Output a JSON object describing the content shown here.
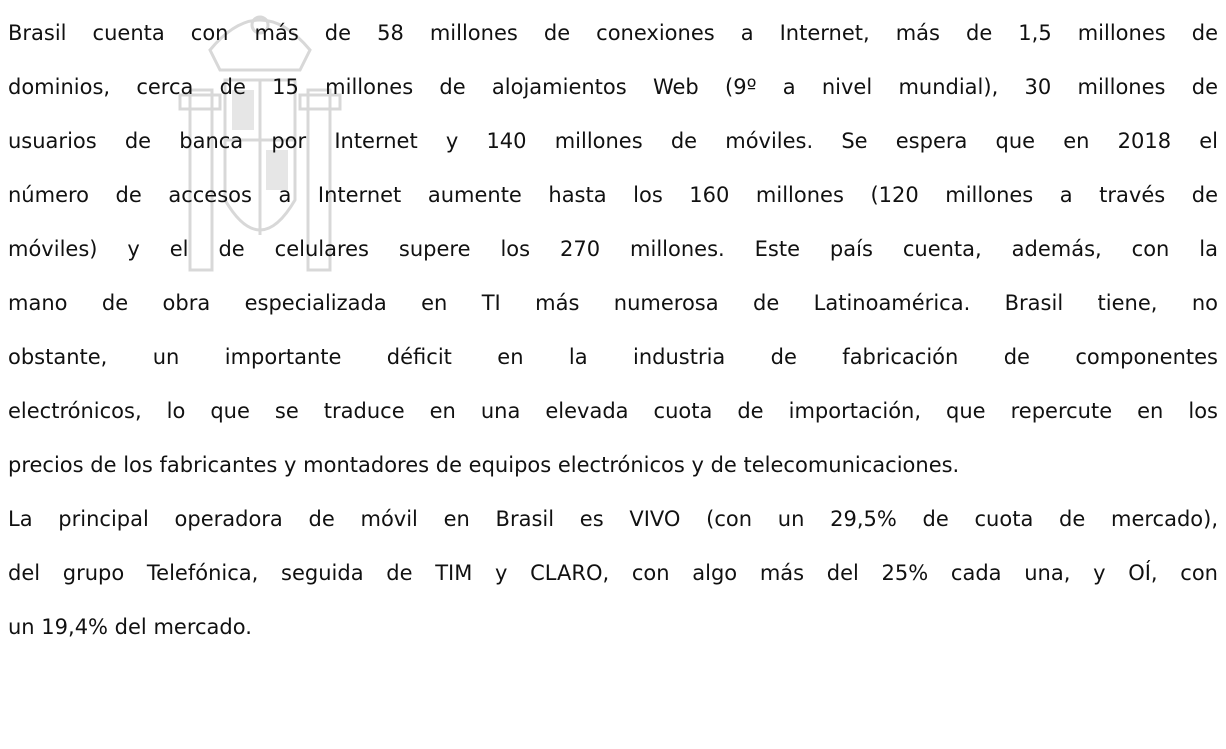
{
  "paragraphs": [
    {
      "lines": [
        "Brasil cuenta con más de 58 millones de conexiones a Internet, más de 1,5 millones de",
        "dominios, cerca de 15 millones de alojamientos Web (9º a nivel mundial), 30 millones de",
        "usuarios de banca por Internet y 140 millones de móviles. Se espera que en 2018 el",
        "número de accesos a Internet aumente hasta los 160 millones (120 millones a través de",
        "móviles) y el de celulares supere los 270 millones. Este país cuenta, además, con la",
        "mano de obra especializada en TI más numerosa de Latinoamérica. Brasil tiene, no",
        "obstante, un importante déficit en la industria de fabricación de componentes",
        "electrónicos, lo que se traduce en una elevada cuota de importación, que repercute en los",
        "precios de los fabricantes y montadores de equipos electrónicos y de telecomunicaciones."
      ]
    },
    {
      "lines": [
        "La principal operadora de móvil en Brasil es VIVO (con un 29,5% de cuota de mercado),",
        "del grupo Telefónica, seguida de TIM y CLARO, con algo más del 25% cada una, y OÍ, con",
        "un 19,4% del mercado."
      ]
    }
  ]
}
